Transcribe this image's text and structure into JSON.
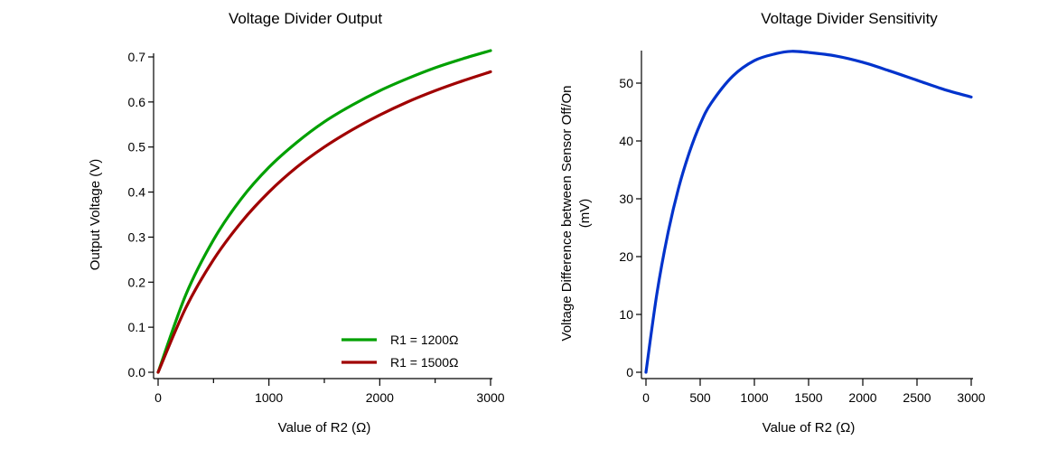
{
  "chart_data": [
    {
      "type": "line",
      "title": "Voltage Divider Output",
      "xlabel": "Value of R2 (Ω)",
      "ylabel": "Output Voltage (V)",
      "xlim": [
        0,
        3000
      ],
      "ylim": [
        0,
        0.7
      ],
      "xticks": [
        0,
        1000,
        2000,
        3000
      ],
      "yticks": [
        0.0,
        0.1,
        0.2,
        0.3,
        0.4,
        0.5,
        0.6,
        0.7
      ],
      "legend_position": "bottom-right",
      "grid": false,
      "x": [
        0,
        250,
        500,
        750,
        1000,
        1250,
        1500,
        1750,
        2000,
        2250,
        2500,
        2750,
        3000
      ],
      "series": [
        {
          "name": "R1 = 1200Ω",
          "color": "#00a000",
          "values": [
            0.0,
            0.172,
            0.294,
            0.385,
            0.455,
            0.51,
            0.556,
            0.593,
            0.625,
            0.652,
            0.676,
            0.696,
            0.714
          ]
        },
        {
          "name": "R1 = 1500Ω",
          "color": "#a00000",
          "values": [
            0.0,
            0.143,
            0.25,
            0.333,
            0.4,
            0.455,
            0.5,
            0.538,
            0.571,
            0.6,
            0.625,
            0.647,
            0.667
          ]
        }
      ]
    },
    {
      "type": "line",
      "title": "Voltage Divider Sensitivity",
      "xlabel": "Value of R2 (Ω)",
      "ylabel": [
        "Voltage Difference between Sensor Off/On",
        "(mV)"
      ],
      "xlim": [
        0,
        3000
      ],
      "ylim": [
        0,
        55
      ],
      "xticks": [
        0,
        500,
        1000,
        1500,
        2000,
        2500,
        3000
      ],
      "yticks": [
        0,
        10,
        20,
        30,
        40,
        50
      ],
      "grid": false,
      "x": [
        0,
        100,
        200,
        300,
        400,
        500,
        600,
        800,
        1000,
        1200,
        1342,
        1500,
        1750,
        2000,
        2250,
        2500,
        2750,
        3000
      ],
      "series": [
        {
          "color": "#0033cc",
          "values": [
            0,
            13.5,
            23.8,
            31.8,
            38.0,
            42.9,
            46.5,
            51.2,
            53.9,
            55.1,
            55.5,
            55.3,
            54.7,
            53.6,
            52.1,
            50.5,
            48.9,
            47.6
          ]
        }
      ]
    }
  ]
}
